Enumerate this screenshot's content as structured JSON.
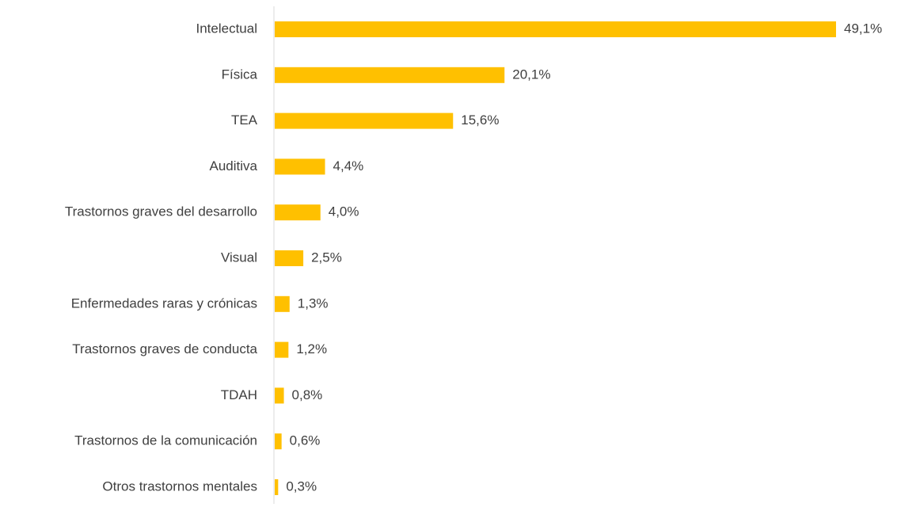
{
  "chart_data": {
    "type": "hbar",
    "categories": [
      "Intelectual",
      "Física",
      "TEA",
      "Auditiva",
      "Trastornos graves del desarrollo",
      "Visual",
      "Enfermedades raras y crónicas",
      "Trastornos graves de conducta",
      "TDAH",
      "Trastornos de la comunicación",
      "Otros trastornos mentales"
    ],
    "values": [
      49.1,
      20.1,
      15.6,
      4.4,
      4.0,
      2.5,
      1.3,
      1.2,
      0.8,
      0.6,
      0.3
    ],
    "value_labels": [
      "49,1%",
      "20,1%",
      "15,6%",
      "4,4%",
      "4,0%",
      "2,5%",
      "1,3%",
      "1,2%",
      "0,8%",
      "0,6%",
      "0,3%"
    ],
    "color": "#FFC000"
  }
}
